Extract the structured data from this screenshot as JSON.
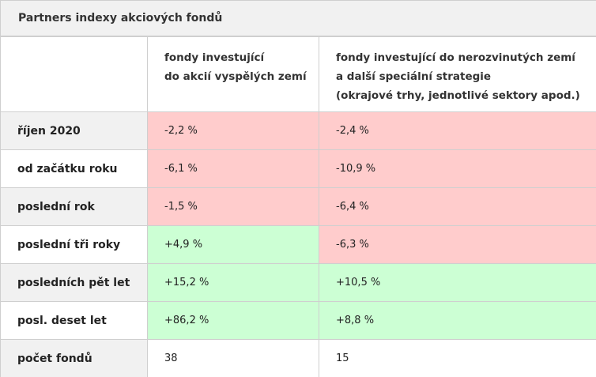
{
  "title": "Partners indexy akciových fondů",
  "header": {
    "col2_line1": "fondy investující",
    "col2_line2": "do akcií vyspělých zemí",
    "col3_line1": "fondy investující do nerozvinutých zemí",
    "col3_line2": "a další speciální strategie",
    "col3_line3": "(okrajové trhy, jednotlivé sektory apod.)"
  },
  "rows": [
    {
      "label": "říjen 2020",
      "developed": "-2,2 %",
      "emerging": "-2,4 %"
    },
    {
      "label": "od začátku roku",
      "developed": "-6,1 %",
      "emerging": "-10,9 %"
    },
    {
      "label": "poslední rok",
      "developed": "-1,5 %",
      "emerging": "-6,4 %"
    },
    {
      "label": "poslední tři roky",
      "developed": "+4,9 %",
      "emerging": "-6,3 %"
    },
    {
      "label": "posledních pět let",
      "developed": "+15,2 %",
      "emerging": "+10,5 %"
    },
    {
      "label": "posl. deset let",
      "developed": "+86,2 %",
      "emerging": "+8,8 %"
    },
    {
      "label": "počet fondů",
      "developed": "38",
      "emerging": "15"
    }
  ],
  "colors": {
    "negative": "#ffcccc",
    "positive": "#ccffd4",
    "label_gray": "#f1f1f1",
    "border": "#cfcfcf"
  }
}
